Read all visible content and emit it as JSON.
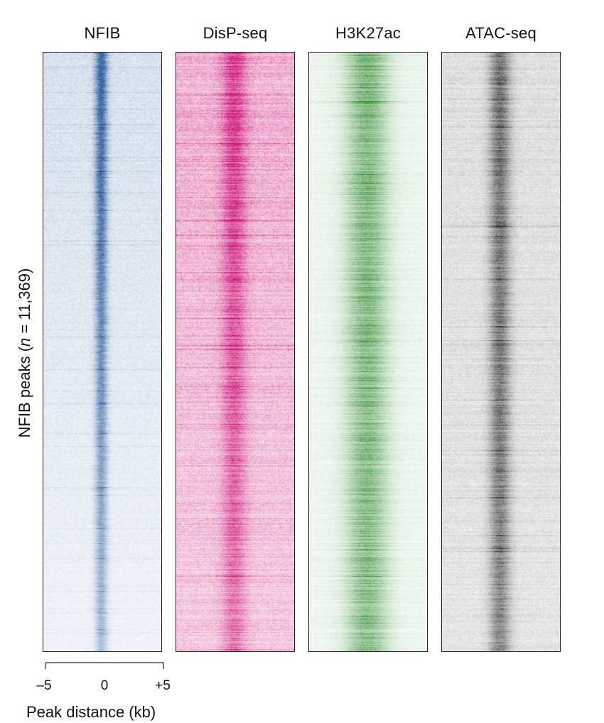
{
  "chart_data": {
    "type": "heatmap",
    "panels": [
      {
        "title": "NFIB",
        "color": "#2f5f9e"
      },
      {
        "title": "DisP-seq",
        "color": "#d0197a"
      },
      {
        "title": "H3K27ac",
        "color": "#2e8a2e"
      },
      {
        "title": "ATAC-seq",
        "color": "#2a2a2a"
      }
    ],
    "ylabel_prefix": "NFIB peaks (",
    "ylabel_var": "n",
    "ylabel_suffix": " = 11,369)",
    "n_peaks": 11369,
    "xlabel": "Peak distance (kb)",
    "x_ticks": [
      {
        "label": "–5",
        "value": -5
      },
      {
        "label": "0",
        "value": 0
      },
      {
        "label": "+5",
        "value": 5
      }
    ],
    "xlim": [
      -5,
      5
    ]
  }
}
